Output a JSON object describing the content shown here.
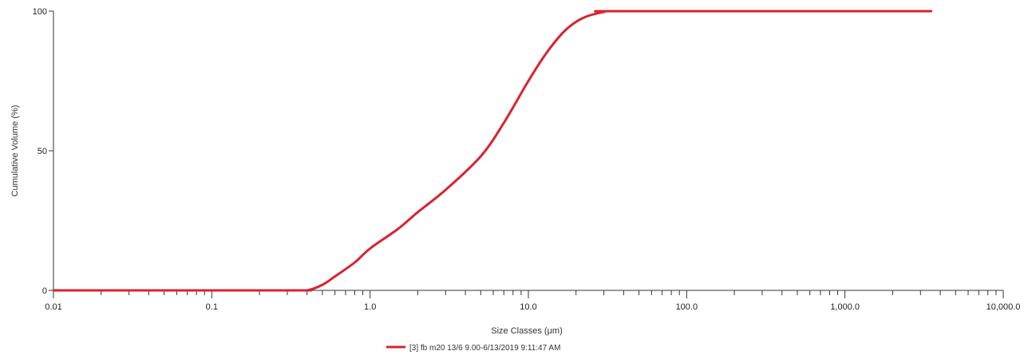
{
  "chart_data": {
    "type": "line",
    "xscale": "log",
    "xlabel": "Size Classes (μm)",
    "ylabel": "Cumulative Volume (%)",
    "xlim": [
      0.01,
      10000
    ],
    "ylim": [
      0,
      100
    ],
    "grid": false,
    "legend_position": "bottom-center",
    "x_tick_labels": [
      {
        "value": 0.01,
        "label": "0.01"
      },
      {
        "value": 0.1,
        "label": "0.1"
      },
      {
        "value": 1,
        "label": "1.0"
      },
      {
        "value": 10,
        "label": "10.0"
      },
      {
        "value": 100,
        "label": "100.0"
      },
      {
        "value": 1000,
        "label": "1,000.0"
      },
      {
        "value": 10000,
        "label": "10,000.0"
      }
    ],
    "y_tick_labels": [
      {
        "value": 0,
        "label": "0"
      },
      {
        "value": 50,
        "label": "50"
      },
      {
        "value": 100,
        "label": "100"
      }
    ],
    "series": [
      {
        "name": "[3] fb m20 13/6 9.00-6/13/2019 9:11:47 AM",
        "color": "#d8232f",
        "points": [
          {
            "x": 0.01,
            "y": 0
          },
          {
            "x": 0.3,
            "y": 0
          },
          {
            "x": 0.4,
            "y": 0
          },
          {
            "x": 0.5,
            "y": 2
          },
          {
            "x": 0.6,
            "y": 5
          },
          {
            "x": 0.8,
            "y": 10
          },
          {
            "x": 1.0,
            "y": 15
          },
          {
            "x": 1.5,
            "y": 22
          },
          {
            "x": 2.0,
            "y": 28
          },
          {
            "x": 3.0,
            "y": 36
          },
          {
            "x": 5.0,
            "y": 48
          },
          {
            "x": 7.0,
            "y": 60
          },
          {
            "x": 10.0,
            "y": 75
          },
          {
            "x": 13.0,
            "y": 85
          },
          {
            "x": 17.0,
            "y": 93
          },
          {
            "x": 22.0,
            "y": 97.5
          },
          {
            "x": 30.0,
            "y": 99.7
          },
          {
            "x": 40.0,
            "y": 100
          },
          {
            "x": 3500,
            "y": 100
          }
        ]
      }
    ]
  }
}
